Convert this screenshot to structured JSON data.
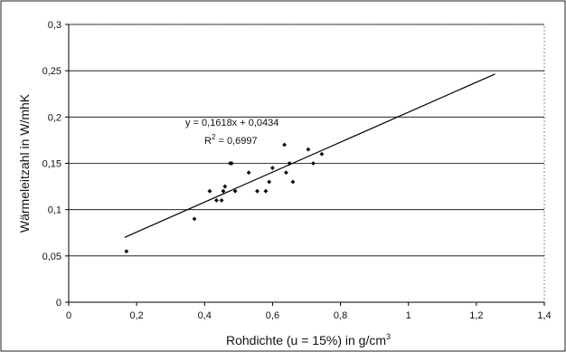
{
  "chart_data": {
    "type": "scatter",
    "xlabel_prefix": "Rohdichte (u = 15%) in g/cm",
    "xlabel_sup": "3",
    "ylabel": "Wärmeleitzahl in W/mhK",
    "xlim": [
      0,
      1.4
    ],
    "ylim": [
      0,
      0.3
    ],
    "x_ticks": [
      0,
      0.2,
      0.4,
      0.6,
      0.8,
      1.0,
      1.2,
      1.4
    ],
    "x_tick_labels": [
      "0",
      "0,2",
      "0,4",
      "0,6",
      "0,8",
      "1",
      "1,2",
      "1,4"
    ],
    "y_ticks": [
      0,
      0.05,
      0.1,
      0.15,
      0.2,
      0.25,
      0.3
    ],
    "y_tick_labels": [
      "0",
      "0,05",
      "0,1",
      "0,15",
      "0,2",
      "0,25",
      "0,3"
    ],
    "grid": "horizontal",
    "points": [
      {
        "x": 0.17,
        "y": 0.055
      },
      {
        "x": 0.37,
        "y": 0.09
      },
      {
        "x": 0.415,
        "y": 0.12
      },
      {
        "x": 0.435,
        "y": 0.11
      },
      {
        "x": 0.45,
        "y": 0.11
      },
      {
        "x": 0.455,
        "y": 0.12
      },
      {
        "x": 0.46,
        "y": 0.125
      },
      {
        "x": 0.475,
        "y": 0.15
      },
      {
        "x": 0.48,
        "y": 0.15
      },
      {
        "x": 0.49,
        "y": 0.12
      },
      {
        "x": 0.53,
        "y": 0.14
      },
      {
        "x": 0.555,
        "y": 0.12
      },
      {
        "x": 0.58,
        "y": 0.12
      },
      {
        "x": 0.59,
        "y": 0.13
      },
      {
        "x": 0.6,
        "y": 0.145
      },
      {
        "x": 0.635,
        "y": 0.17
      },
      {
        "x": 0.64,
        "y": 0.14
      },
      {
        "x": 0.65,
        "y": 0.15
      },
      {
        "x": 0.66,
        "y": 0.13
      },
      {
        "x": 0.705,
        "y": 0.165
      },
      {
        "x": 0.72,
        "y": 0.15
      },
      {
        "x": 0.745,
        "y": 0.16
      }
    ],
    "trendline": {
      "slope": 0.1618,
      "intercept": 0.0434,
      "x_start": 0.165,
      "x_end": 1.255,
      "equation_text": "y = 0,1618x + 0,0434",
      "r2_prefix": "R",
      "r2_sup": "2",
      "r2_suffix": " = 0,6997"
    }
  }
}
